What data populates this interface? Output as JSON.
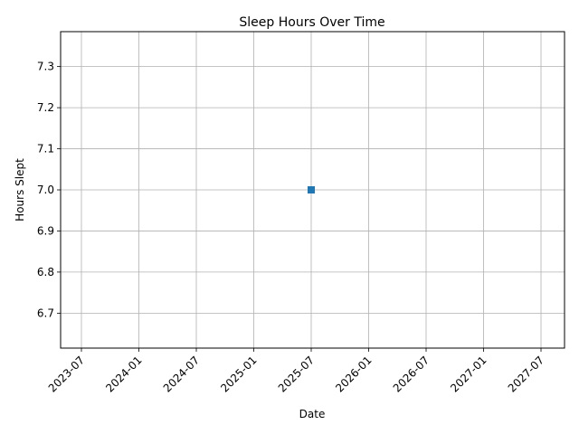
{
  "chart_data": {
    "type": "scatter",
    "title": "Sleep Hours Over Time",
    "xlabel": "Date",
    "ylabel": "Hours Slept",
    "x_tick_labels": [
      "2023-07",
      "2024-01",
      "2024-07",
      "2025-01",
      "2025-07",
      "2026-01",
      "2026-07",
      "2027-01",
      "2027-07"
    ],
    "y_tick_labels": [
      "6.7",
      "6.8",
      "6.9",
      "7.0",
      "7.1",
      "7.2",
      "7.3"
    ],
    "y_ticks": [
      6.7,
      6.8,
      6.9,
      7.0,
      7.1,
      7.2,
      7.3
    ],
    "ylim": [
      6.615,
      7.385
    ],
    "points": [
      {
        "x": "2025-07",
        "y": 7.0
      }
    ],
    "marker": "square",
    "grid": true,
    "colors": {
      "series": "#1f77b4",
      "grid": "#b0b0b0",
      "axes": "#000000"
    }
  }
}
